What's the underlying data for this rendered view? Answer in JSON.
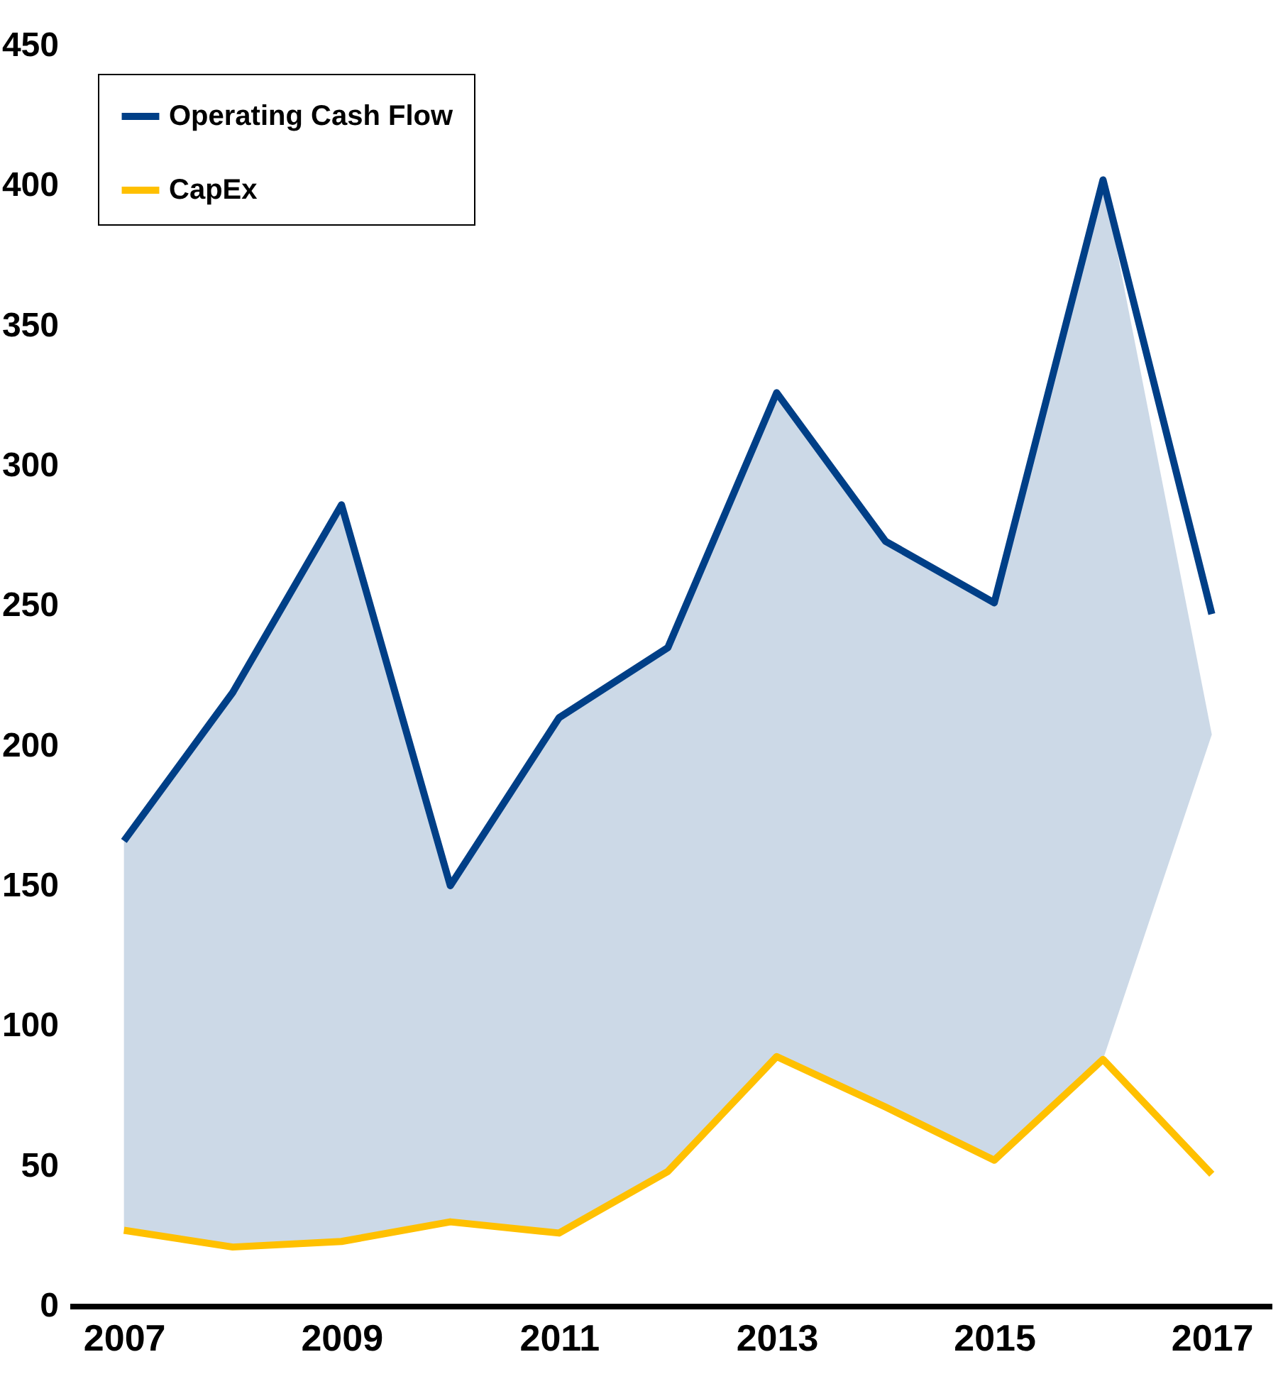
{
  "chart_data": {
    "type": "line",
    "x": [
      2007,
      2008,
      2009,
      2010,
      2011,
      2012,
      2013,
      2014,
      2015,
      2016,
      2017
    ],
    "xlim": [
      2006.5,
      2017.55
    ],
    "xticks": [
      2007,
      2009,
      2011,
      2013,
      2015,
      2017
    ],
    "ylim": [
      0,
      450
    ],
    "yticks": [
      0,
      50,
      100,
      150,
      200,
      250,
      300,
      350,
      400,
      450
    ],
    "grid": false,
    "legend": "top left",
    "series": [
      {
        "name": "Operating Cash Flow",
        "color": "#003f87",
        "values": [
          166,
          219,
          286,
          150,
          210,
          235,
          326,
          273,
          251,
          402,
          247
        ],
        "lower": [
          27,
          21,
          23,
          30,
          26,
          48,
          89,
          71,
          52,
          88,
          204
        ],
        "upper": [
          166,
          219,
          286,
          150,
          210,
          235,
          326,
          273,
          251,
          402,
          204
        ]
      },
      {
        "name": "CapEx",
        "color": "#ffc000",
        "values": [
          27,
          21,
          23,
          30,
          26,
          48,
          89,
          71,
          52,
          88,
          47
        ]
      }
    ]
  }
}
